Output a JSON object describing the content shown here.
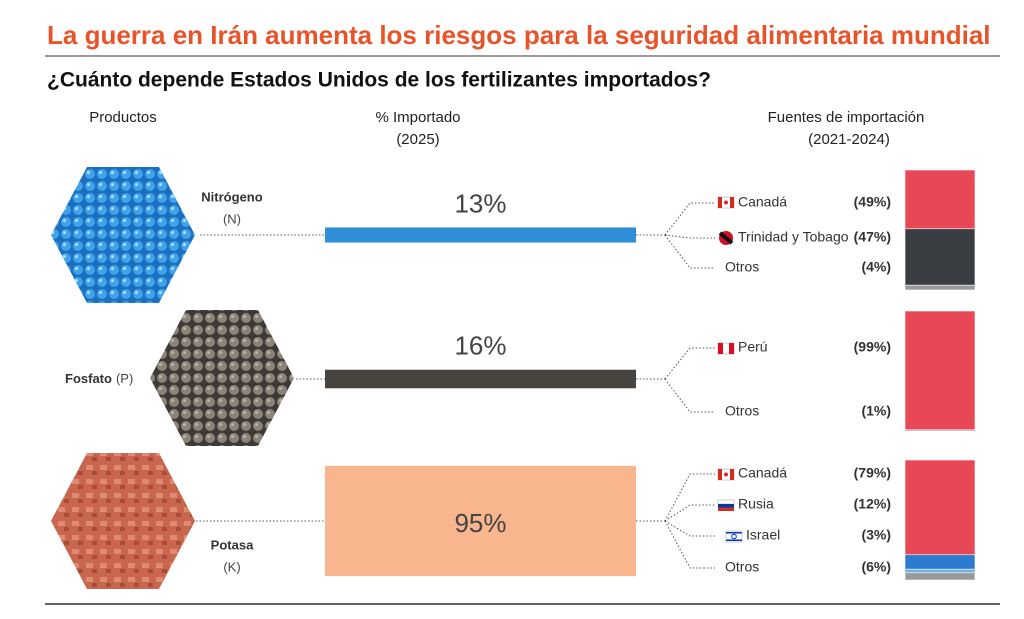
{
  "chart_data": {
    "type": "infographic",
    "title": "La guerra en Irán aumenta los riesgos para la seguridad alimentaria mundial",
    "subtitle": "¿Cuánto depende Estados Unidos de los fertilizantes importados?",
    "headers": {
      "products": "Productos",
      "imported": "% Importado",
      "imported_year": "(2025)",
      "sources": "Fuentes de importación",
      "sources_years": "(2021-2024)"
    },
    "products": [
      {
        "name": "Nitrógeno",
        "symbol": "(N)",
        "color": "#2f8fd8",
        "value": 13,
        "value_label": "13%",
        "sources": [
          {
            "name": "Canadá",
            "value": 49,
            "value_label": "(49%)",
            "color": "#e84855"
          },
          {
            "name": "Trinidad y Tobago",
            "value": 47,
            "value_label": "(47%)",
            "color": "#3a3d42"
          },
          {
            "name": "Otros",
            "value": 4,
            "value_label": "(4%)",
            "color": "#9a9a9a"
          }
        ]
      },
      {
        "name": "Fosfato",
        "symbol": "(P)",
        "color": "#4a4440",
        "value": 16,
        "value_label": "16%",
        "sources": [
          {
            "name": "Perú",
            "value": 99,
            "value_label": "(99%)",
            "color": "#e84855"
          },
          {
            "name": "Otros",
            "value": 1,
            "value_label": "(1%)",
            "color": "#9a9a9a"
          }
        ]
      },
      {
        "name": "Potasa",
        "symbol": "(K)",
        "color": "#f9b68e",
        "value": 95,
        "value_label": "95%",
        "sources": [
          {
            "name": "Canadá",
            "value": 79,
            "value_label": "(79%)",
            "color": "#e84855"
          },
          {
            "name": "Rusia",
            "value": 12,
            "value_label": "(12%)",
            "color": "#2b7bd0"
          },
          {
            "name": "Israel",
            "value": 3,
            "value_label": "(3%)",
            "color": "#6fb0e0"
          },
          {
            "name": "Otros",
            "value": 6,
            "value_label": "(6%)",
            "color": "#9a9a9a"
          }
        ]
      }
    ]
  }
}
